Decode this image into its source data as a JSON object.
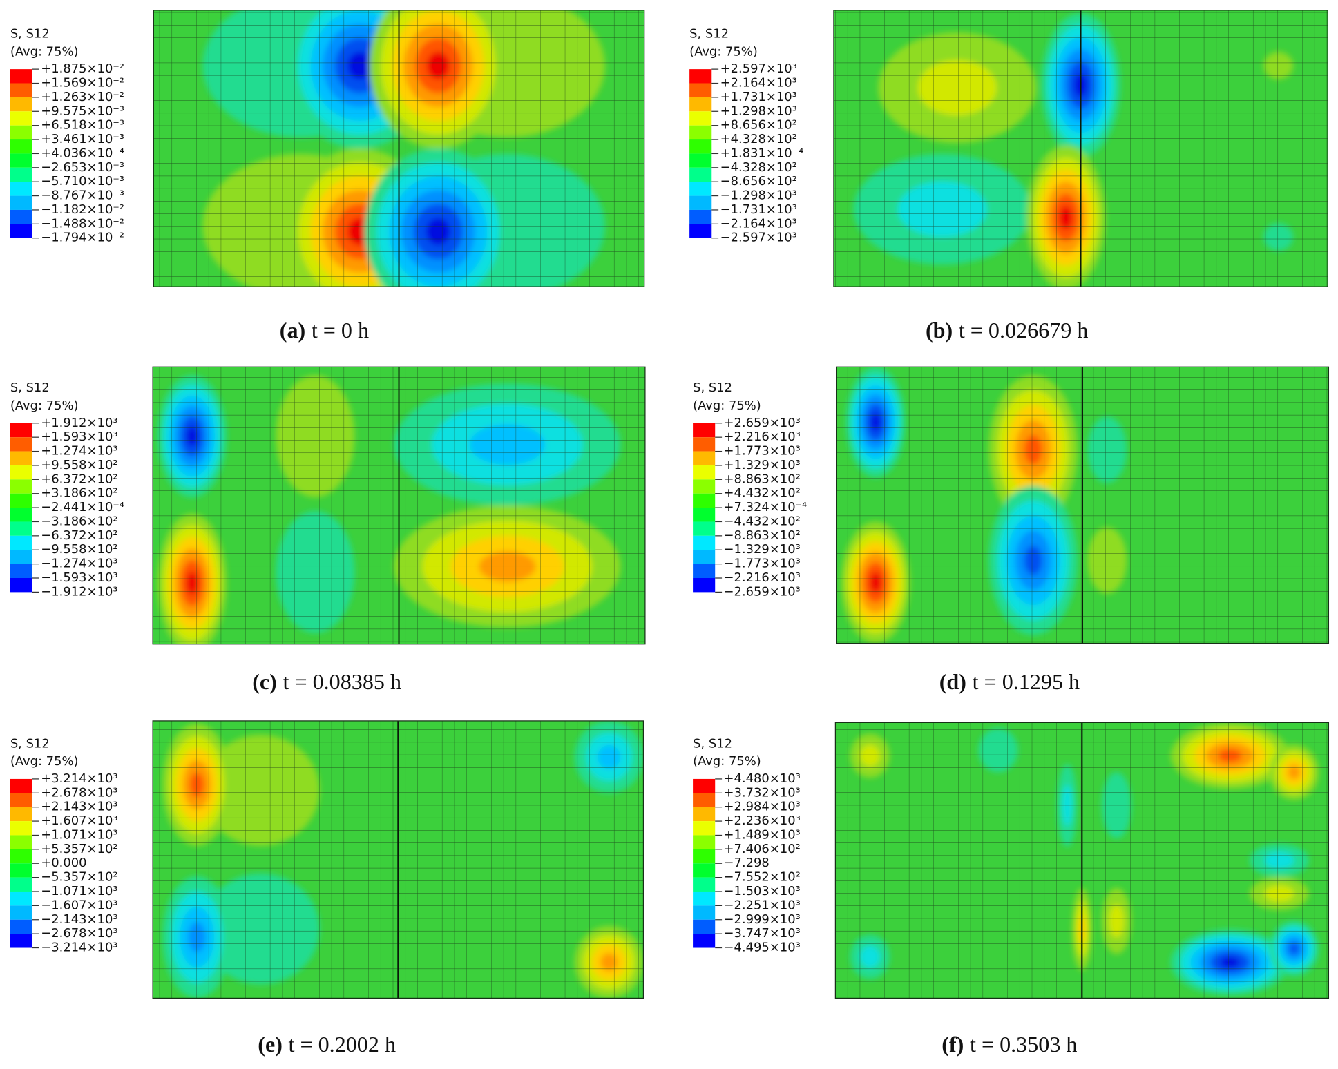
{
  "panels": [
    {
      "legend_title": "S, S12",
      "legend_subtitle": "(Avg: 75%)",
      "legend_labels": [
        "+1.875×10⁻²",
        "+1.569×10⁻²",
        "+1.263×10⁻²",
        "+9.575×10⁻³",
        "+6.518×10⁻³",
        "+3.461×10⁻³",
        "+4.036×10⁻⁴",
        "−2.653×10⁻³",
        "−5.710×10⁻³",
        "−8.767×10⁻³",
        "−1.182×10⁻²",
        "−1.488×10⁻²",
        "−1.794×10⁻²"
      ],
      "caption_letter": "(a)",
      "caption_text": "t = 0 h"
    },
    {
      "legend_title": "S, S12",
      "legend_subtitle": "(Avg: 75%)",
      "legend_labels": [
        "+2.597×10³",
        "+2.164×10³",
        "+1.731×10³",
        "+1.298×10³",
        "+8.656×10²",
        "+4.328×10²",
        "+1.831×10⁻⁴",
        "−4.328×10²",
        "−8.656×10²",
        "−1.298×10³",
        "−1.731×10³",
        "−2.164×10³",
        "−2.597×10³"
      ],
      "caption_letter": "(b)",
      "caption_text": "t = 0.026679 h"
    },
    {
      "legend_title": "S, S12",
      "legend_subtitle": "(Avg: 75%)",
      "legend_labels": [
        "+1.912×10³",
        "+1.593×10³",
        "+1.274×10³",
        "+9.558×10²",
        "+6.372×10²",
        "+3.186×10²",
        "−2.441×10⁻⁴",
        "−3.186×10²",
        "−6.372×10²",
        "−9.558×10²",
        "−1.274×10³",
        "−1.593×10³",
        "−1.912×10³"
      ],
      "caption_letter": "(c)",
      "caption_text": "t = 0.08385 h"
    },
    {
      "legend_title": "S, S12",
      "legend_subtitle": "(Avg: 75%)",
      "legend_labels": [
        "+2.659×10³",
        "+2.216×10³",
        "+1.773×10³",
        "+1.329×10³",
        "+8.863×10²",
        "+4.432×10²",
        "+7.324×10⁻⁴",
        "−4.432×10²",
        "−8.863×10²",
        "−1.329×10³",
        "−1.773×10³",
        "−2.216×10³",
        "−2.659×10³"
      ],
      "caption_letter": "(d)",
      "caption_text": "t = 0.1295 h"
    },
    {
      "legend_title": "S, S12",
      "legend_subtitle": "(Avg: 75%)",
      "legend_labels": [
        "+3.214×10³",
        "+2.678×10³",
        "+2.143×10³",
        "+1.607×10³",
        "+1.071×10³",
        "+5.357×10²",
        "+0.000",
        "−5.357×10²",
        "−1.071×10³",
        "−1.607×10³",
        "−2.143×10³",
        "−2.678×10³",
        "−3.214×10³"
      ],
      "caption_letter": "(e)",
      "caption_text": "t = 0.2002 h"
    },
    {
      "legend_title": "S, S12",
      "legend_subtitle": "(Avg: 75%)",
      "legend_labels": [
        "+4.480×10³",
        "+3.732×10³",
        "+2.984×10³",
        "+2.236×10³",
        "+1.489×10³",
        "+7.406×10²",
        "−7.298",
        "−7.552×10²",
        "−1.503×10³",
        "−2.251×10³",
        "−2.999×10³",
        "−3.747×10³",
        "−4.495×10³"
      ],
      "caption_letter": "(f)",
      "caption_text": "t = 0.3503 h"
    }
  ]
}
